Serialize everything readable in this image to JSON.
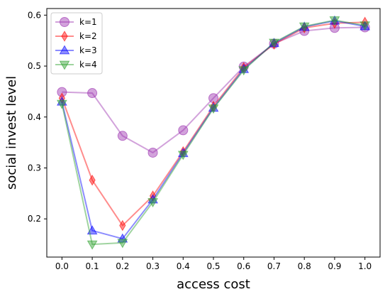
{
  "chart_data": {
    "type": "line",
    "xlabel": "access cost",
    "ylabel": "social invest level",
    "x": [
      0.0,
      0.1,
      0.2,
      0.3,
      0.4,
      0.5,
      0.6,
      0.7,
      0.8,
      0.9,
      1.0
    ],
    "x_tick_labels": [
      "0.0",
      "0.1",
      "0.2",
      "0.3",
      "0.4",
      "0.5",
      "0.6",
      "0.7",
      "0.8",
      "0.9",
      "1.0"
    ],
    "y_ticks": [
      0.2,
      0.3,
      0.4,
      0.5,
      0.6
    ],
    "y_tick_labels": [
      "0.2",
      "0.3",
      "0.4",
      "0.5",
      "0.6"
    ],
    "xlim": [
      -0.05,
      1.05
    ],
    "ylim": [
      0.125,
      0.613
    ],
    "grid": false,
    "legend_position": "top-left",
    "series": [
      {
        "name": "k=1",
        "color": "#9b30b0",
        "marker": "circle",
        "values": [
          0.449,
          0.447,
          0.363,
          0.33,
          0.374,
          0.437,
          0.499,
          0.544,
          0.569,
          0.575,
          0.576
        ]
      },
      {
        "name": "k=2",
        "color": "#ff0000",
        "marker": "diamond",
        "values": [
          0.437,
          0.276,
          0.187,
          0.245,
          0.332,
          0.421,
          0.497,
          0.543,
          0.575,
          0.584,
          0.586
        ]
      },
      {
        "name": "k=3",
        "color": "#0000ff",
        "marker": "triangle-up",
        "values": [
          0.43,
          0.177,
          0.161,
          0.238,
          0.329,
          0.418,
          0.494,
          0.545,
          0.577,
          0.589,
          0.578
        ]
      },
      {
        "name": "k=4",
        "color": "#2ca02c",
        "marker": "triangle-down",
        "values": [
          0.426,
          0.15,
          0.153,
          0.233,
          0.326,
          0.417,
          0.492,
          0.546,
          0.578,
          0.59,
          0.58
        ]
      }
    ]
  }
}
